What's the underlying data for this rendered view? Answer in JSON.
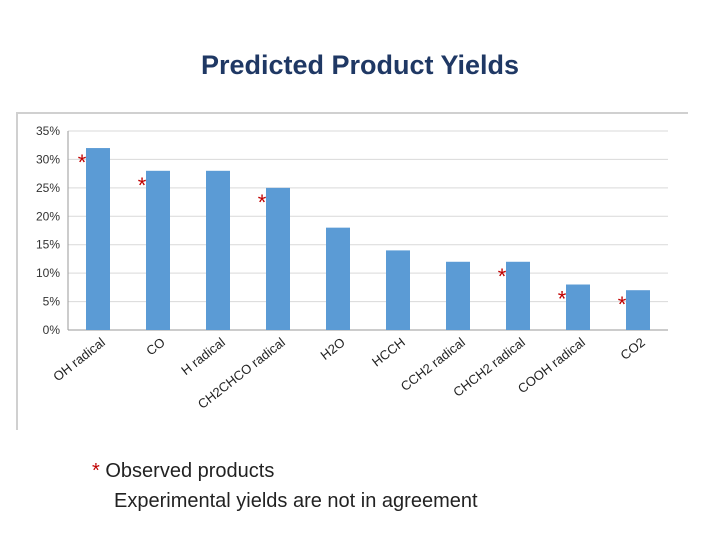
{
  "slide": {
    "title": "Predicted Product Yields"
  },
  "chart_data": {
    "type": "bar",
    "title": "",
    "xlabel": "",
    "ylabel": "",
    "categories": [
      "OH radical",
      "CO",
      "H radical",
      "CH2CHCO radical",
      "H2O",
      "HCCH",
      "CCH2 radical",
      "CHCH2 radical",
      "COOH radical",
      "CO2"
    ],
    "values": [
      32,
      28,
      28,
      25,
      18,
      14,
      12,
      12,
      8,
      7
    ],
    "observed": [
      true,
      true,
      false,
      true,
      false,
      false,
      false,
      true,
      true,
      true
    ],
    "ylim": [
      0,
      35
    ],
    "yticks": [
      "0%",
      "5%",
      "10%",
      "15%",
      "20%",
      "25%",
      "30%",
      "35%"
    ],
    "grid": true,
    "bar_color": "#5b9bd5",
    "marker": "*",
    "marker_color": "#c00000"
  },
  "footnotes": {
    "marker": "*",
    "line1": " Observed products",
    "line2": "Experimental yields are not in agreement"
  }
}
